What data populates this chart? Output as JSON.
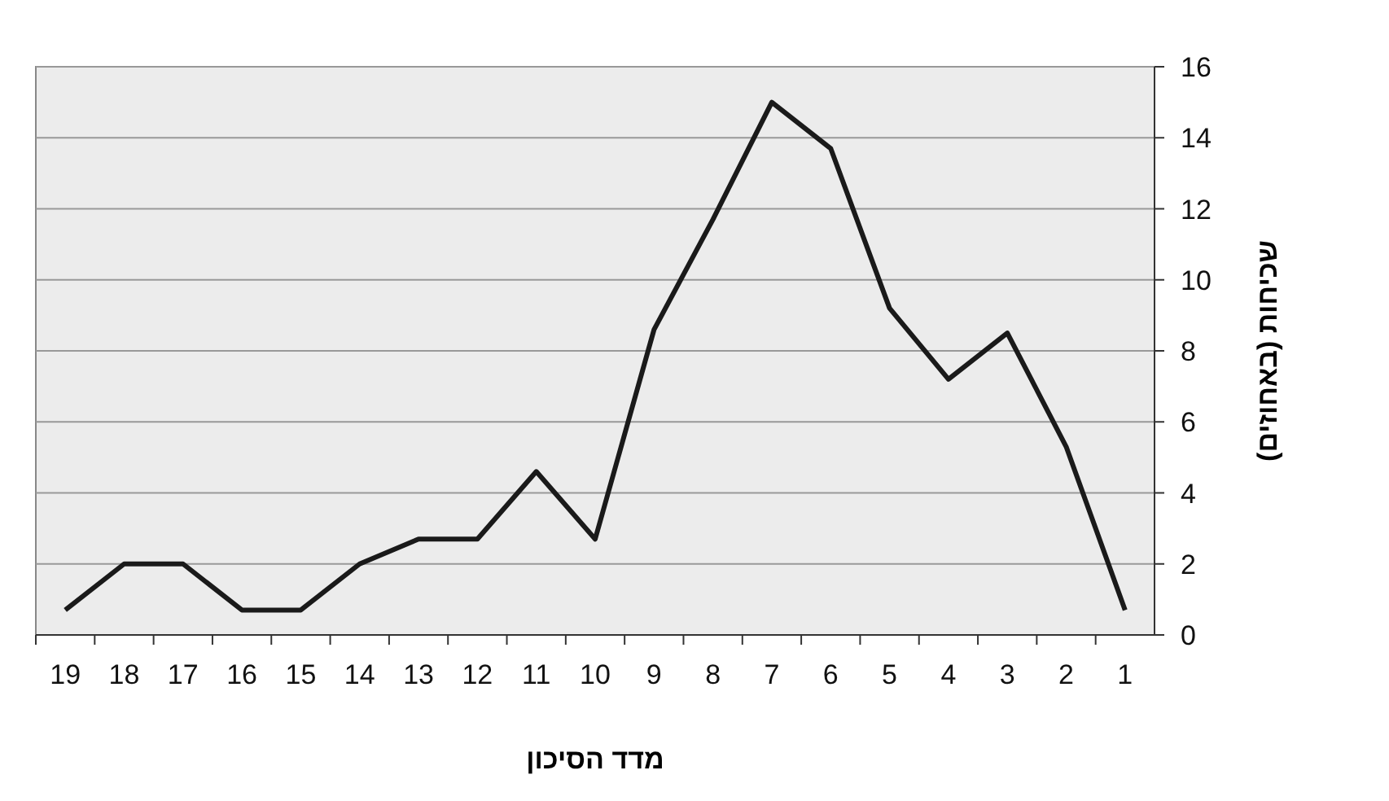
{
  "chart_data": {
    "type": "line",
    "xlabel": "מדד הסיכון",
    "ylabel": "שכיחות (באחוזים)",
    "categories": [
      "19",
      "18",
      "17",
      "16",
      "15",
      "14",
      "13",
      "12",
      "11",
      "10",
      "9",
      "8",
      "7",
      "6",
      "5",
      "4",
      "3",
      "2",
      "1"
    ],
    "series": [
      {
        "color": "#1a1a1a",
        "values": [
          0.7,
          2,
          2,
          0.7,
          0.7,
          2,
          2.7,
          2.7,
          4.6,
          2.7,
          8.6,
          11.7,
          15,
          13.7,
          9.2,
          7.2,
          8.5,
          5.3,
          0.7
        ]
      }
    ],
    "ylim": [
      0,
      16
    ],
    "yticks": [
      0,
      2,
      4,
      6,
      8,
      10,
      12,
      14,
      16
    ],
    "grid": "y",
    "marker": "none",
    "line_style": "solid"
  }
}
